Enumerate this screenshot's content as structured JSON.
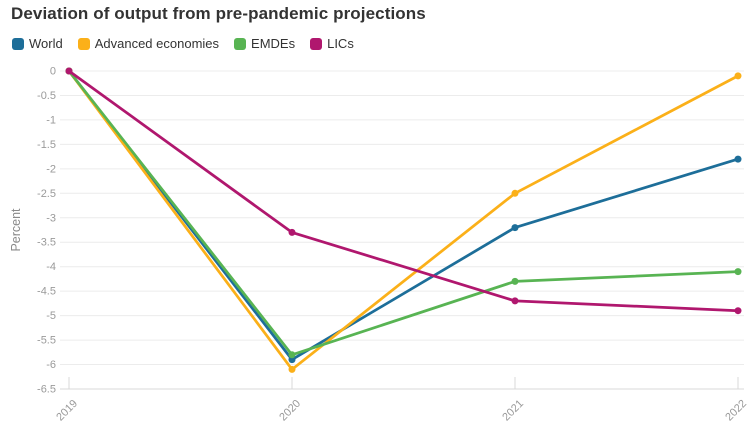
{
  "chart_data": {
    "type": "line",
    "title": "Deviation of output from pre-pandemic projections",
    "ylabel": "Percent",
    "xlabel": "",
    "x_labels": [
      "2019",
      "2020",
      "2021",
      "2022"
    ],
    "y_ticks": [
      0,
      -0.5,
      -1,
      -1.5,
      -2,
      -2.5,
      -3,
      -3.5,
      -4,
      -4.5,
      -5,
      -5.5,
      -6,
      -6.5
    ],
    "ylim": [
      -6.5,
      0
    ],
    "grid": true,
    "legend_position": "top-left",
    "series": [
      {
        "name": "World",
        "color": "#1d6e99",
        "values": [
          0,
          -5.9,
          -3.2,
          -1.8
        ]
      },
      {
        "name": "Advanced economies",
        "color": "#fbb019",
        "values": [
          0,
          -6.1,
          -2.5,
          -0.1
        ]
      },
      {
        "name": "EMDEs",
        "color": "#58b453",
        "values": [
          0,
          -5.8,
          -4.3,
          -4.1
        ]
      },
      {
        "name": "LICs",
        "color": "#b0176e",
        "values": [
          0,
          -3.3,
          -4.7,
          -4.9
        ]
      }
    ],
    "colors": {
      "title_text": "#333333",
      "legend_text": "#333333",
      "grid_line": "#ececec",
      "axis_line": "#d9d9d9",
      "tick_label": "#9a9a9a",
      "axis_label": "#8a8a8a",
      "background": "#ffffff"
    }
  }
}
